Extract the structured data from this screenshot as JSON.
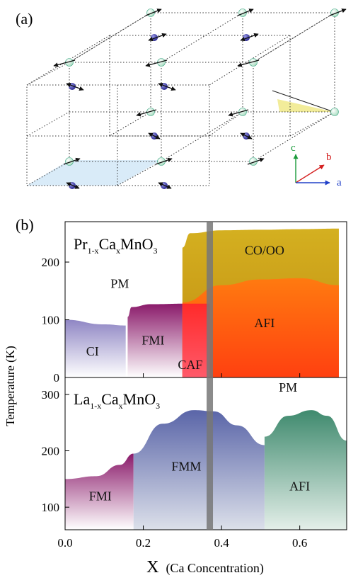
{
  "panel_a": {
    "label": "(a)",
    "axes": {
      "c": "c",
      "b": "b",
      "a": "a",
      "c_color": "#1a9a3a",
      "b_color": "#d42020",
      "a_color": "#2040c8"
    }
  },
  "panel_b": {
    "label": "(b)",
    "y_axis_label": "Temperature (K)",
    "x_axis_label_main": "X",
    "x_axis_label_rest": "(Ca Concentration)",
    "colors": {
      "ci": "#8f86c4",
      "fmi": "#8a1a6a",
      "caf": "#e8202a",
      "afi_top": "#ff6a10",
      "co_oo": "#d4ad12",
      "fmm": "#5a65a8",
      "afi_bottom": "#3f8a6e",
      "x_band": "#777777"
    }
  },
  "chart_data": [
    {
      "type": "area",
      "title": "Pr1-xCaxMnO3",
      "title_parts": {
        "base1": "Pr",
        "sub1": "1-x",
        "base2": "Ca",
        "sub2": "x",
        "base3": "MnO",
        "sub3": "3"
      },
      "xlabel": "X (Ca Concentration)",
      "ylabel": "Temperature (K)",
      "xlim": [
        0.0,
        0.72
      ],
      "ylim": [
        0,
        270
      ],
      "yticks": [
        0,
        100,
        200
      ],
      "xticks": [
        0.0,
        0.2,
        0.4,
        0.6
      ],
      "phase_labels": [
        {
          "text": "PM",
          "x": 0.14,
          "y": 155
        },
        {
          "text": "CI",
          "x": 0.07,
          "y": 38
        },
        {
          "text": "FMI",
          "x": 0.225,
          "y": 57
        },
        {
          "text": "CAF",
          "x": 0.32,
          "y": 15
        },
        {
          "text": "AFI",
          "x": 0.51,
          "y": 87
        },
        {
          "text": "CO/OO",
          "x": 0.51,
          "y": 213
        }
      ],
      "phases": [
        {
          "name": "CI",
          "x": [
            0.0,
            0.1,
            0.155
          ],
          "upper": [
            100,
            92,
            90
          ]
        },
        {
          "name": "FMI",
          "x": [
            0.16,
            0.17,
            0.22,
            0.31
          ],
          "upper": [
            105,
            122,
            127,
            128
          ]
        },
        {
          "name": "CO/OO",
          "x": [
            0.3,
            0.32,
            0.4,
            0.5,
            0.6,
            0.7
          ],
          "upper": [
            225,
            250,
            255,
            256,
            257,
            258
          ]
        },
        {
          "name": "AFI",
          "x": [
            0.3,
            0.4,
            0.5,
            0.6,
            0.7
          ],
          "upper": [
            130,
            160,
            170,
            172,
            160
          ]
        },
        {
          "name": "CAF",
          "x": [
            0.3,
            0.37
          ],
          "upper": [
            128,
            128
          ]
        }
      ],
      "vertical_band_x": 0.37
    },
    {
      "type": "area",
      "title": "La1-xCaxMnO3",
      "title_parts": {
        "base1": "La",
        "sub1": "1-x",
        "base2": "Ca",
        "sub2": "x",
        "base3": "MnO",
        "sub3": "3"
      },
      "xlabel": "X (Ca Concentration)",
      "ylabel": "Temperature (K)",
      "xlim": [
        0.0,
        0.72
      ],
      "ylim": [
        60,
        330
      ],
      "yticks": [
        100,
        200,
        300
      ],
      "xticks": [
        0.0,
        0.2,
        0.4,
        0.6
      ],
      "xtick_labels": [
        "0.0",
        "0.2",
        "0.4",
        "0.6"
      ],
      "phase_labels": [
        {
          "text": "PM",
          "x": 0.57,
          "y": 305
        },
        {
          "text": "FMI",
          "x": 0.09,
          "y": 112
        },
        {
          "text": "FMM",
          "x": 0.31,
          "y": 165
        },
        {
          "text": "AFI",
          "x": 0.6,
          "y": 130
        }
      ],
      "phases": [
        {
          "name": "FMI",
          "x": [
            0.0,
            0.08,
            0.14,
            0.175
          ],
          "upper": [
            150,
            155,
            175,
            195
          ]
        },
        {
          "name": "FMM",
          "x": [
            0.175,
            0.25,
            0.33,
            0.38,
            0.44,
            0.51
          ],
          "upper": [
            195,
            248,
            272,
            270,
            245,
            210
          ]
        },
        {
          "name": "AFI",
          "x": [
            0.51,
            0.57,
            0.63,
            0.67,
            0.72
          ],
          "upper": [
            225,
            262,
            272,
            262,
            218
          ]
        }
      ],
      "vertical_band_x": 0.37
    }
  ]
}
